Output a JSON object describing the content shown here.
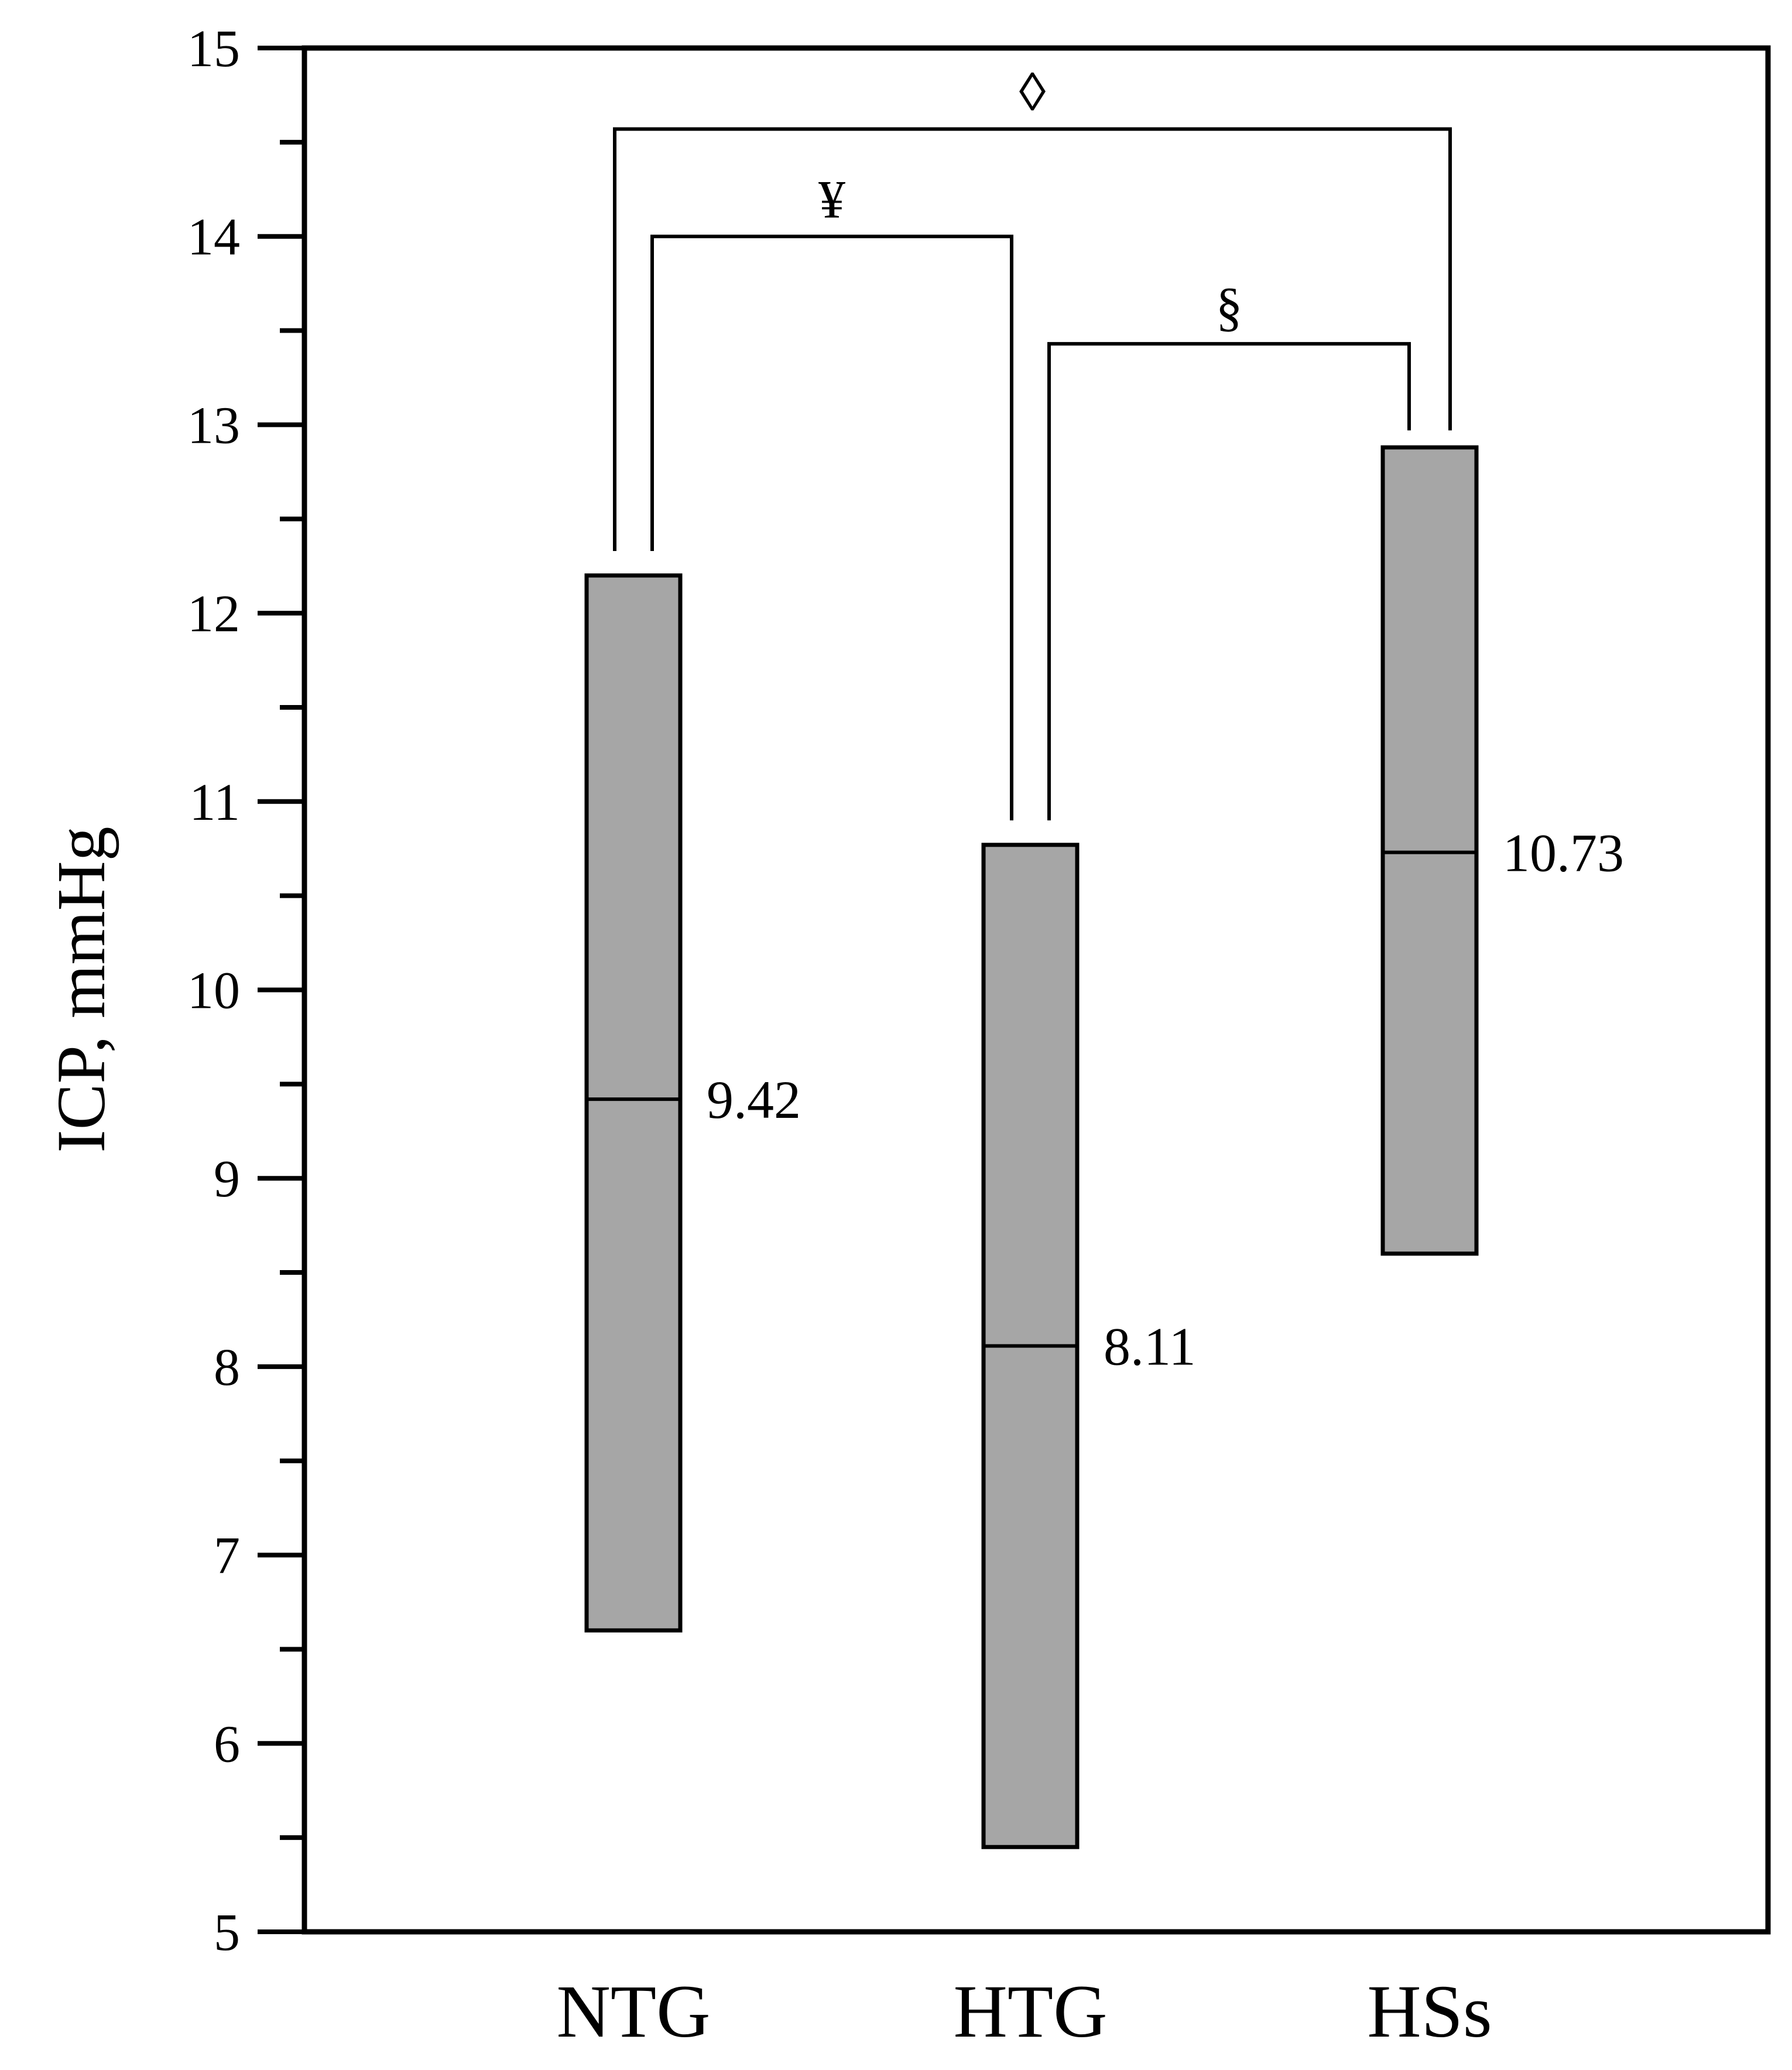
{
  "chart_data": {
    "type": "box",
    "ylabel": "ICP, mmHg",
    "xlabel": "",
    "ylim": [
      5,
      15
    ],
    "y_ticks": [
      "5",
      "6",
      "7",
      "8",
      "9",
      "10",
      "11",
      "12",
      "13",
      "14",
      "15"
    ],
    "y_minor_step": 0.5,
    "grid": false,
    "categories": [
      "NTG",
      "HTG",
      "HSs"
    ],
    "boxes": [
      {
        "category": "NTG",
        "low": 6.6,
        "high": 12.2,
        "median": 9.42,
        "median_label": "9.42"
      },
      {
        "category": "HTG",
        "low": 5.45,
        "high": 10.77,
        "median": 8.11,
        "median_label": "8.11"
      },
      {
        "category": "HSs",
        "low": 8.6,
        "high": 12.88,
        "median": 10.73,
        "median_label": "10.73"
      }
    ],
    "significance": [
      {
        "from": "NTG",
        "to": "HSs",
        "symbol": "◊",
        "level": 14.57
      },
      {
        "from": "NTG",
        "to": "HTG",
        "symbol": "¥",
        "level": 14.0
      },
      {
        "from": "HTG",
        "to": "HSs",
        "symbol": "§",
        "level": 13.43
      }
    ],
    "colors": {
      "box_fill": "#a6a6a6",
      "stroke": "#000000"
    }
  }
}
